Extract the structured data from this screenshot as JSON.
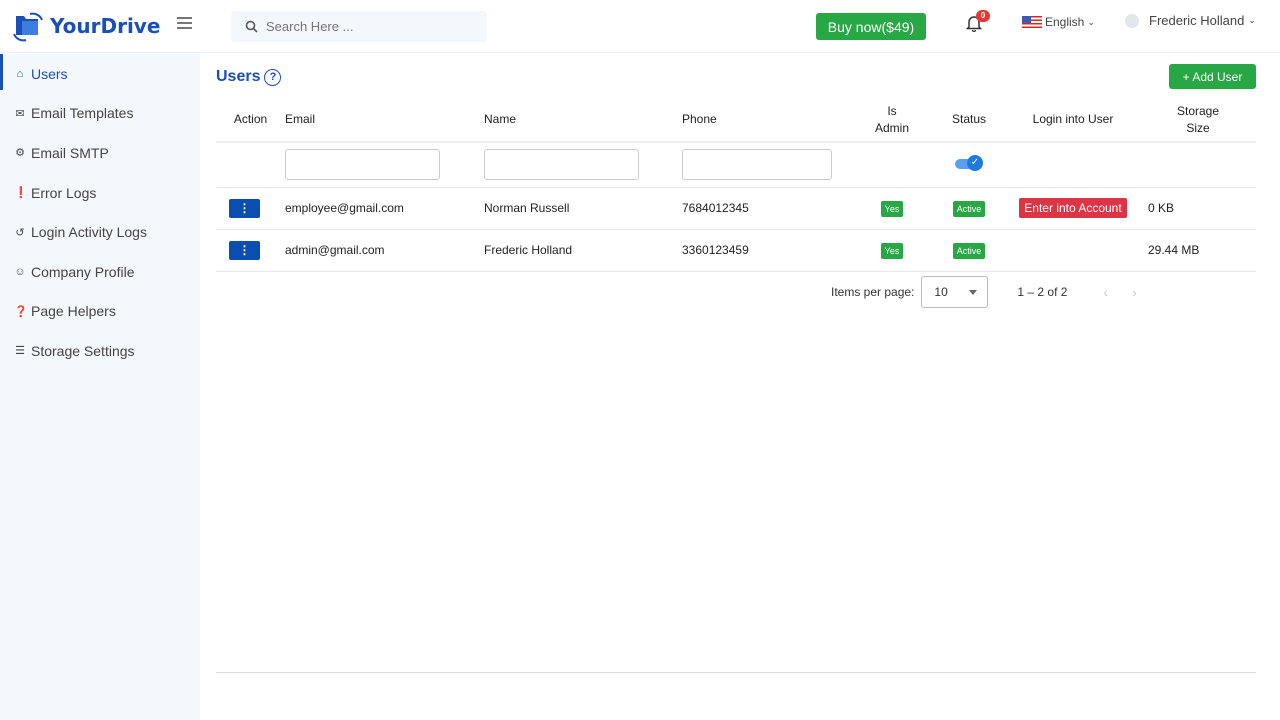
{
  "header": {
    "brand": "YourDrive",
    "search_placeholder": "Search Here ...",
    "buy_label": "Buy now($49)",
    "notification_count": "0",
    "language": "English",
    "user_name": "Frederic Holland"
  },
  "sidebar": {
    "items": [
      {
        "label": "Users",
        "icon": "home-icon",
        "active": true
      },
      {
        "label": "Email Templates",
        "icon": "mail-template-icon"
      },
      {
        "label": "Email SMTP",
        "icon": "gear-icon"
      },
      {
        "label": "Error Logs",
        "icon": "exclamation-circle-icon"
      },
      {
        "label": "Login Activity Logs",
        "icon": "history-icon"
      },
      {
        "label": "Company Profile",
        "icon": "user-circle-icon"
      },
      {
        "label": "Page Helpers",
        "icon": "question-circle-icon"
      },
      {
        "label": "Storage Settings",
        "icon": "list-icon"
      }
    ]
  },
  "main": {
    "title": "Users",
    "add_label": "Add User",
    "columns": [
      "Action",
      "Email",
      "Name",
      "Phone",
      "Is Admin",
      "Status",
      "Login into User",
      "Storage Size"
    ],
    "rows": [
      {
        "email": "employee@gmail.com",
        "name": "Norman Russell",
        "phone": "7684012345",
        "is_admin": "Yes",
        "status": "Active",
        "login": "Enter into Account",
        "storage": "0 KB"
      },
      {
        "email": "admin@gmail.com",
        "name": "Frederic Holland",
        "phone": "3360123459",
        "is_admin": "Yes",
        "status": "Active",
        "login": "",
        "storage": "29.44 MB"
      }
    ],
    "status_filter_on": true,
    "pagination": {
      "label": "Items per page:",
      "per_page": "10",
      "range": "1 – 2 of 2"
    }
  },
  "colors": {
    "brand": "#1b4fb8",
    "success": "#28a745",
    "danger": "#dc3545"
  }
}
